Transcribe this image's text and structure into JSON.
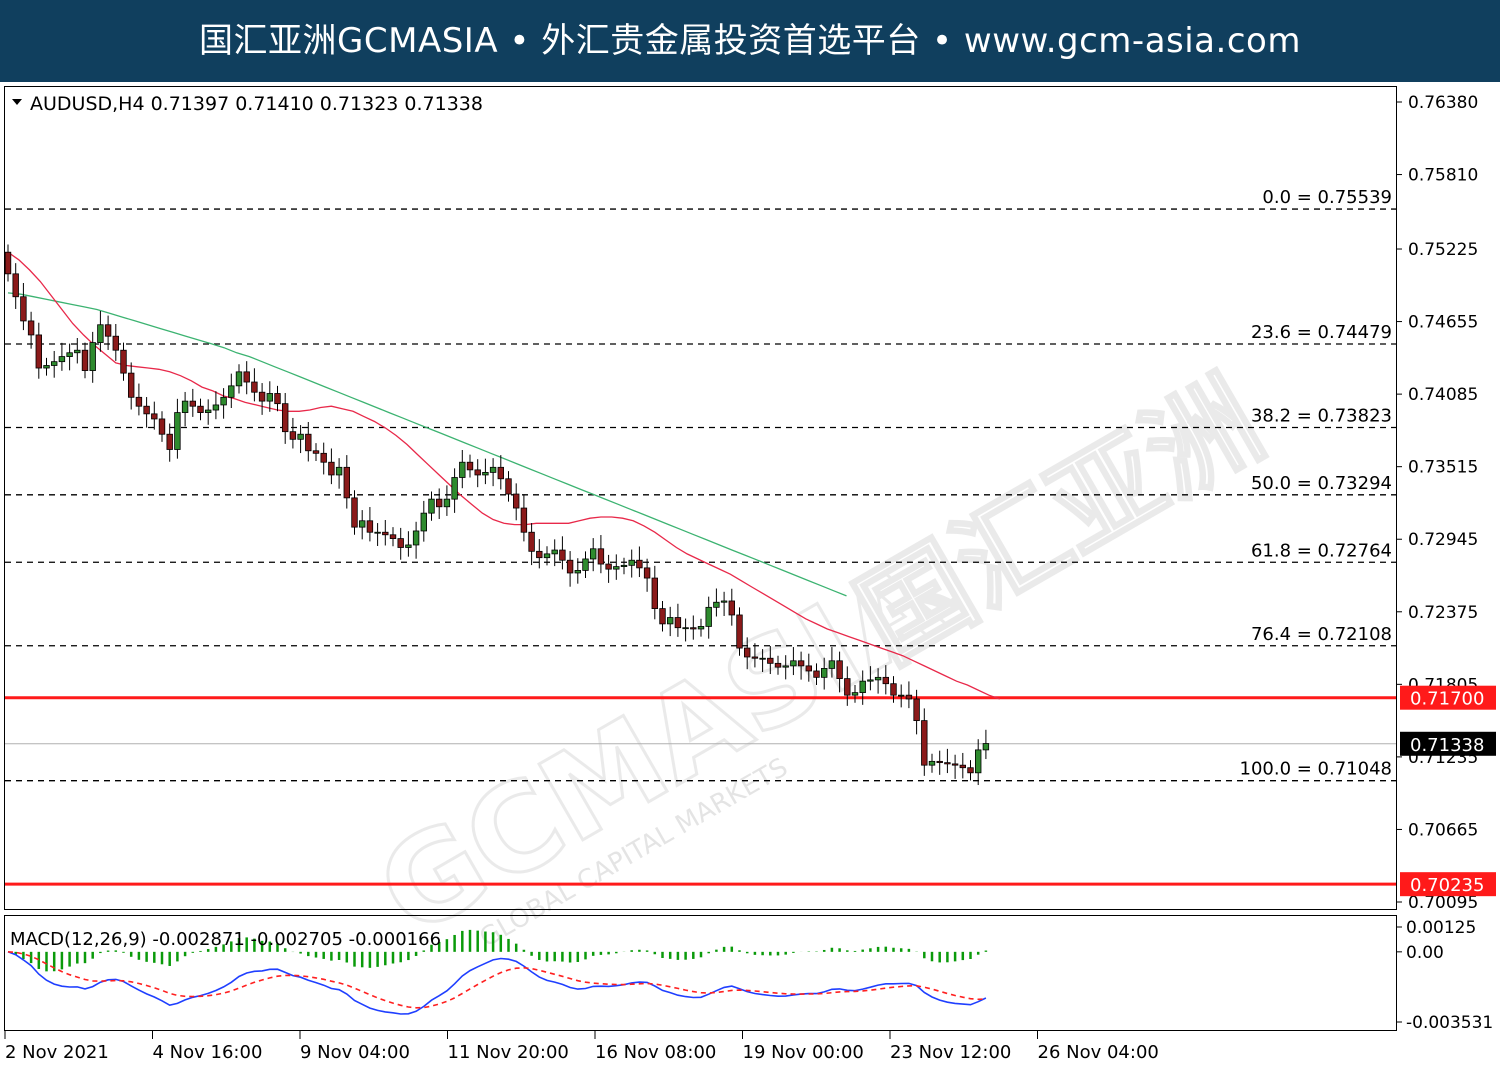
{
  "banner": {
    "text": "国汇亚洲GCMASIA • 外汇贵金属投资首选平台 • www.gcm-asia.com"
  },
  "watermark": {
    "main": "GCMASIA",
    "cn": "国汇亚洲",
    "sub": "GLOBAL CAPITAL MARKETS"
  },
  "colors": {
    "banner_bg": "#103f5e",
    "bull": "#2e8b2e",
    "bear": "#8b1a1a",
    "ma_fast": "#e8294a",
    "ma_slow": "#3cb371",
    "level": "#ff1a1a",
    "macd_line": "#1f3fff",
    "signal_line": "#ff2020",
    "hist": "#0a9a0a"
  },
  "chart_data": {
    "type": "candlestick",
    "symbol_line": "AUDUSD,H4  0.71397 0.71410 0.71323 0.71338",
    "ylim": [
      0.70095,
      0.7638
    ],
    "y_ticks": [
      "0.76380",
      "0.75810",
      "0.75225",
      "0.74655",
      "0.74085",
      "0.73515",
      "0.72945",
      "0.72375",
      "0.71805",
      "0.71235",
      "0.70665",
      "0.70095"
    ],
    "x_labels": [
      "2 Nov 2021",
      "4 Nov 16:00",
      "9 Nov 04:00",
      "11 Nov 20:00",
      "16 Nov 08:00",
      "19 Nov 00:00",
      "23 Nov 12:00",
      "26 Nov 04:00"
    ],
    "fib_levels": [
      {
        "label": "0.0 = 0.75539",
        "value": 0.75539
      },
      {
        "label": "23.6 = 0.74479",
        "value": 0.74479
      },
      {
        "label": "38.2 = 0.73823",
        "value": 0.73823
      },
      {
        "label": "50.0 = 0.73294",
        "value": 0.73294
      },
      {
        "label": "61.8 = 0.72764",
        "value": 0.72764
      },
      {
        "label": "76.4 = 0.72108",
        "value": 0.72108
      },
      {
        "label": "100.0 = 0.71048",
        "value": 0.71048
      }
    ],
    "red_levels": [
      {
        "label": "0.71700",
        "value": 0.717
      },
      {
        "label": "0.70235",
        "value": 0.70235
      }
    ],
    "current_price": {
      "label": "0.71338",
      "value": 0.71338
    },
    "closes": [
      0.7503,
      0.7485,
      0.7466,
      0.7455,
      0.7429,
      0.7431,
      0.7434,
      0.7438,
      0.7441,
      0.7443,
      0.7427,
      0.7449,
      0.7463,
      0.7454,
      0.7443,
      0.7425,
      0.7406,
      0.7399,
      0.7393,
      0.7389,
      0.7377,
      0.7365,
      0.7394,
      0.7403,
      0.7399,
      0.7394,
      0.7396,
      0.74,
      0.7406,
      0.7415,
      0.7426,
      0.7418,
      0.741,
      0.7403,
      0.7409,
      0.7401,
      0.7379,
      0.7373,
      0.7377,
      0.7364,
      0.7362,
      0.7355,
      0.7345,
      0.7351,
      0.7327,
      0.7304,
      0.7309,
      0.73,
      0.73,
      0.7298,
      0.7295,
      0.7288,
      0.729,
      0.7301,
      0.7315,
      0.7326,
      0.732,
      0.7326,
      0.7343,
      0.7355,
      0.7349,
      0.7345,
      0.7347,
      0.7351,
      0.7342,
      0.733,
      0.7319,
      0.73,
      0.7285,
      0.728,
      0.7283,
      0.7286,
      0.7278,
      0.7268,
      0.727,
      0.7279,
      0.7287,
      0.7275,
      0.7271,
      0.7273,
      0.7274,
      0.7278,
      0.7272,
      0.7264,
      0.724,
      0.7228,
      0.7233,
      0.7225,
      0.7225,
      0.7224,
      0.7226,
      0.7241,
      0.7245,
      0.7246,
      0.7235,
      0.7209,
      0.7202,
      0.7201,
      0.7201,
      0.7197,
      0.7194,
      0.7195,
      0.7199,
      0.7195,
      0.7191,
      0.7186,
      0.7193,
      0.7199,
      0.7185,
      0.7172,
      0.7174,
      0.7183,
      0.7184,
      0.7186,
      0.7181,
      0.7172,
      0.7172,
      0.7169,
      0.7152,
      0.7117,
      0.712,
      0.7119,
      0.7118,
      0.7117,
      0.7115,
      0.7111,
      0.7129,
      0.7134
    ],
    "ma_fast": [
      0.752,
      0.7514,
      0.7506,
      0.7497,
      0.7486,
      0.7475,
      0.7464,
      0.7455,
      0.7447,
      0.744,
      0.7433,
      0.7431,
      0.743,
      0.7429,
      0.7428,
      0.7426,
      0.7423,
      0.7419,
      0.7414,
      0.7411,
      0.7407,
      0.7405,
      0.7402,
      0.74,
      0.7398,
      0.7396,
      0.7395,
      0.7395,
      0.7396,
      0.7398,
      0.7399,
      0.7397,
      0.7395,
      0.7391,
      0.7387,
      0.7382,
      0.7376,
      0.7369,
      0.7361,
      0.7353,
      0.7345,
      0.7337,
      0.7329,
      0.7322,
      0.7315,
      0.731,
      0.7307,
      0.7306,
      0.7306,
      0.7307,
      0.7307,
      0.7307,
      0.7307,
      0.7309,
      0.7311,
      0.7312,
      0.7312,
      0.7311,
      0.7309,
      0.7305,
      0.73,
      0.7294,
      0.7288,
      0.7283,
      0.7279,
      0.7275,
      0.7271,
      0.7267,
      0.7262,
      0.7257,
      0.7252,
      0.7247,
      0.7242,
      0.7237,
      0.7232,
      0.7228,
      0.7224,
      0.7221,
      0.7218,
      0.7215,
      0.7212,
      0.7209,
      0.7206,
      0.7203,
      0.7199,
      0.7195,
      0.7191,
      0.7187,
      0.7183,
      0.718,
      0.7176,
      0.7172,
      0.7169
    ],
    "ma_slow": [
      0.7488,
      0.7487,
      0.7485,
      0.7483,
      0.7481,
      0.7479,
      0.7477,
      0.7475,
      0.7472,
      0.7469,
      0.7466,
      0.7463,
      0.746,
      0.7457,
      0.7454,
      0.7451,
      0.7448,
      0.7445,
      0.7441,
      0.7438,
      0.7434,
      0.743,
      0.7426,
      0.7422,
      0.7418,
      0.7414,
      0.741,
      0.7406,
      0.7402,
      0.7398,
      0.7394,
      0.739,
      0.7386,
      0.7382,
      0.7378,
      0.7374,
      0.737,
      0.7366,
      0.7362,
      0.7358,
      0.7354,
      0.735,
      0.7346,
      0.7342,
      0.7338,
      0.7334,
      0.733,
      0.7326,
      0.7322,
      0.7318,
      0.7314,
      0.731,
      0.7306,
      0.7302,
      0.7298,
      0.7294,
      0.729,
      0.7286,
      0.7282,
      0.7278,
      0.7274,
      0.727,
      0.7266,
      0.7262,
      0.7258,
      0.7254,
      0.725
    ],
    "macd": {
      "label": "MACD(12,26,9) -0.002871 -0.002705 -0.000166",
      "ylim": [
        -0.003531,
        0.00125
      ],
      "y_ticks": [
        "0.00125",
        "0.00",
        "-0.003531"
      ]
    }
  }
}
